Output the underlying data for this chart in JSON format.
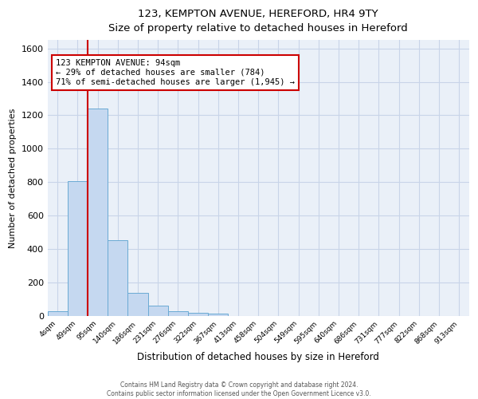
{
  "title": "123, KEMPTON AVENUE, HEREFORD, HR4 9TY",
  "subtitle": "Size of property relative to detached houses in Hereford",
  "xlabel": "Distribution of detached houses by size in Hereford",
  "ylabel": "Number of detached properties",
  "footer_line1": "Contains HM Land Registry data © Crown copyright and database right 2024.",
  "footer_line2": "Contains public sector information licensed under the Open Government Licence v3.0.",
  "bar_labels": [
    "4sqm",
    "49sqm",
    "95sqm",
    "140sqm",
    "186sqm",
    "231sqm",
    "276sqm",
    "322sqm",
    "367sqm",
    "413sqm",
    "458sqm",
    "504sqm",
    "549sqm",
    "595sqm",
    "640sqm",
    "686sqm",
    "731sqm",
    "777sqm",
    "822sqm",
    "868sqm",
    "913sqm"
  ],
  "bar_values": [
    25,
    805,
    1240,
    450,
    135,
    60,
    25,
    15,
    12,
    0,
    0,
    0,
    0,
    0,
    0,
    0,
    0,
    0,
    0,
    0,
    0
  ],
  "bar_color": "#c5d8f0",
  "bar_edge_color": "#6aaad4",
  "red_line_color": "#cc0000",
  "annotation_text": "123 KEMPTON AVENUE: 94sqm\n← 29% of detached houses are smaller (784)\n71% of semi-detached houses are larger (1,945) →",
  "annotation_box_color": "#ffffff",
  "annotation_box_edge_color": "#cc0000",
  "ylim": [
    0,
    1650
  ],
  "yticks": [
    0,
    200,
    400,
    600,
    800,
    1000,
    1200,
    1400,
    1600
  ],
  "grid_color": "#c8d4e8",
  "outer_background_color": "#ffffff",
  "plot_background_color": "#eaf0f8"
}
